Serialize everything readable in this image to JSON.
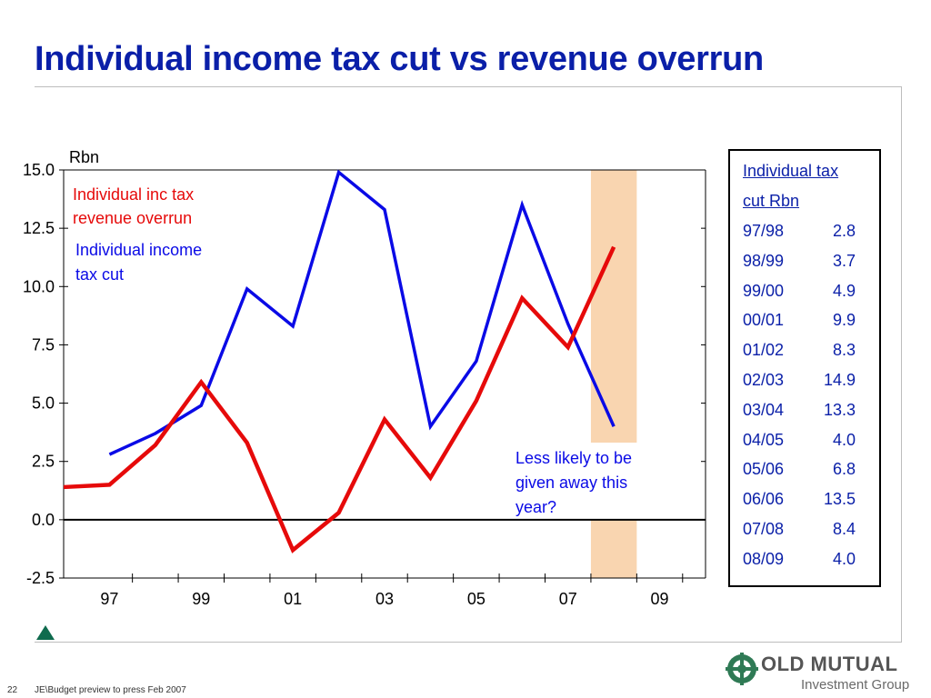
{
  "slide": {
    "title": "Individual income tax cut vs revenue overrun",
    "page_number": "22",
    "footer": "JE\\Budget preview to press Feb 2007"
  },
  "logo": {
    "name": "OLD MUTUAL",
    "sub": "Investment Group"
  },
  "table": {
    "header1": "Individual tax",
    "header2": "cut Rbn",
    "rows": [
      {
        "year": "97/98",
        "value": "2.8"
      },
      {
        "year": "98/99",
        "value": "3.7"
      },
      {
        "year": "99/00",
        "value": "4.9"
      },
      {
        "year": "00/01",
        "value": "9.9"
      },
      {
        "year": "01/02",
        "value": "8.3"
      },
      {
        "year": "02/03",
        "value": "14.9"
      },
      {
        "year": "03/04",
        "value": "13.3"
      },
      {
        "year": "04/05",
        "value": "4.0"
      },
      {
        "year": "05/06",
        "value": "6.8"
      },
      {
        "year": "06/06",
        "value": "13.5"
      },
      {
        "year": "07/08",
        "value": "8.4"
      },
      {
        "year": "08/09",
        "value": "4.0"
      }
    ]
  },
  "chart_data": {
    "type": "line",
    "title": "",
    "ylabel": "Rbn",
    "xlabel": "",
    "ylim": [
      -2.5,
      15.0
    ],
    "yticks": [
      "15.0",
      "12.5",
      "10.0",
      "7.5",
      "5.0",
      "2.5",
      "0.0",
      "-2.5"
    ],
    "xticks": [
      "97",
      "99",
      "01",
      "03",
      "05",
      "07",
      "09"
    ],
    "xtick_values": [
      1997,
      1999,
      2001,
      2003,
      2005,
      2007,
      2009
    ],
    "xlim": [
      1996,
      2010
    ],
    "grid": false,
    "series": [
      {
        "name": "Individual income tax cut",
        "color": "#0a0ae6",
        "x": [
          1997,
          1998,
          1999,
          2000,
          2001,
          2002,
          2003,
          2004,
          2005,
          2006,
          2007,
          2008
        ],
        "values": [
          2.8,
          3.7,
          4.9,
          9.9,
          8.3,
          14.9,
          13.3,
          4.0,
          6.8,
          13.5,
          8.4,
          4.0
        ]
      },
      {
        "name": "Individual inc tax revenue overrun",
        "color": "#e60a0a",
        "x": [
          1996,
          1997,
          1998,
          1999,
          2000,
          2001,
          2002,
          2003,
          2004,
          2005,
          2006,
          2007,
          2008
        ],
        "values": [
          1.4,
          1.5,
          3.2,
          5.9,
          3.3,
          -1.3,
          0.3,
          4.3,
          1.8,
          5.1,
          9.5,
          7.4,
          11.7
        ]
      }
    ],
    "highlight": {
      "x_from": 2007.5,
      "x_to": 2008.5,
      "color": "#f9d5b0"
    },
    "annotation": "Less likely to be given away this year?",
    "zero_line": true
  }
}
